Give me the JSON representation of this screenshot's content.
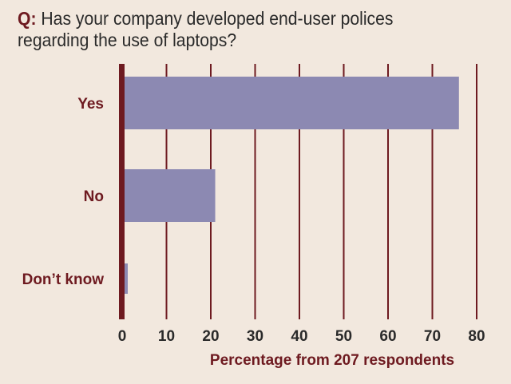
{
  "question": {
    "prefix": "Q:",
    "text": "Has your company developed end-user polices regarding the use of laptops?"
  },
  "colors": {
    "background": "#f2e8de",
    "bar": "#8c89b2",
    "axis": "#6e1a20",
    "grid": "#6e1a20",
    "category_text": "#6e1a20",
    "tick_text": "#2a2a2a"
  },
  "chart_data": {
    "type": "bar",
    "orientation": "horizontal",
    "categories": [
      "Yes",
      "No",
      "Don’t know"
    ],
    "values": [
      76,
      21,
      1
    ],
    "xlabel": "Percentage from 207 respondents",
    "xlim": [
      0,
      80
    ],
    "xticks": [
      0,
      10,
      20,
      30,
      40,
      50,
      60,
      70,
      80
    ],
    "grid": true
  }
}
